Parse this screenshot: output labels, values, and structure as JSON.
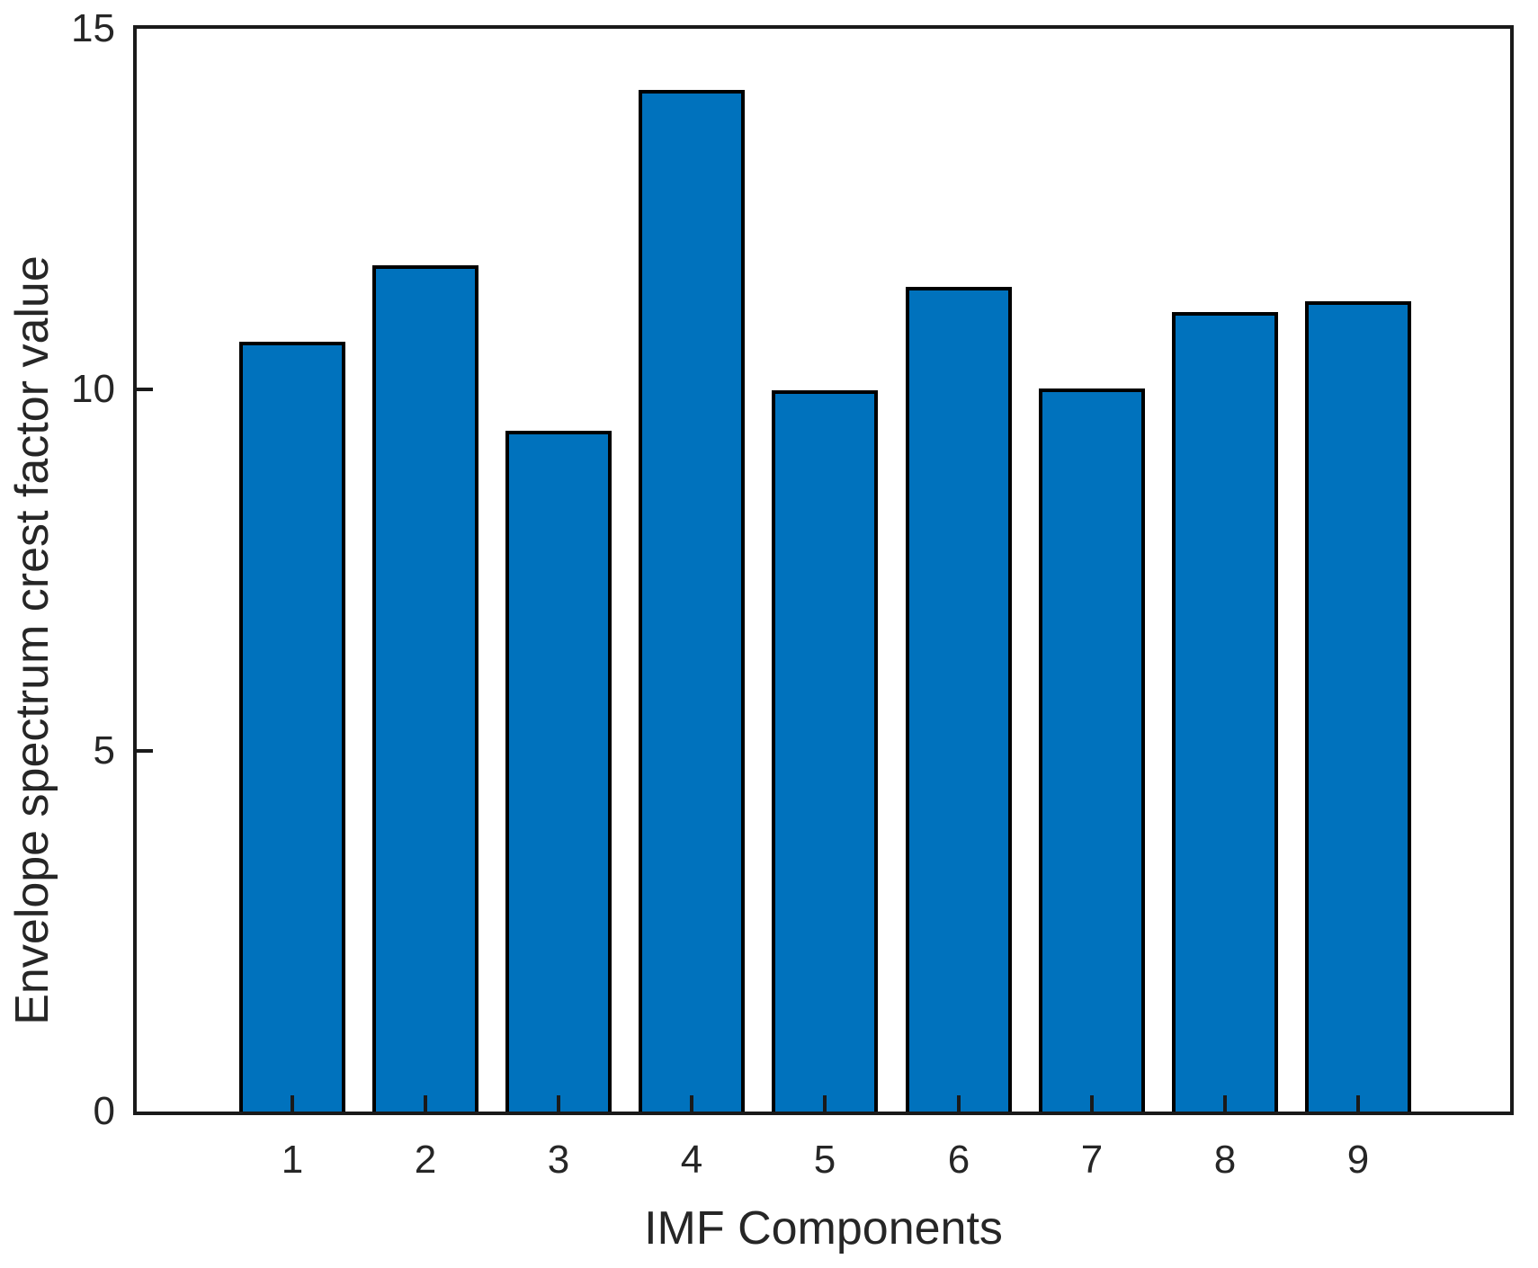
{
  "chart_data": {
    "type": "bar",
    "title": "",
    "xlabel": "IMF Components",
    "ylabel": "Envelope spectrum crest factor value",
    "categories": [
      "1",
      "2",
      "3",
      "4",
      "5",
      "6",
      "7",
      "8",
      "9"
    ],
    "values": [
      10.66,
      11.72,
      9.43,
      14.15,
      9.99,
      11.42,
      10.02,
      11.08,
      11.22
    ],
    "ylim": [
      0,
      15
    ],
    "yticks": [
      0,
      5,
      10,
      15
    ],
    "grid": false,
    "legend_position": "none",
    "bar_color": "#0072BD",
    "bar_edge_color": "#000000",
    "axis_color": "#1a1a1a",
    "text_color": "#262626",
    "plot_background": "#ffffff"
  }
}
